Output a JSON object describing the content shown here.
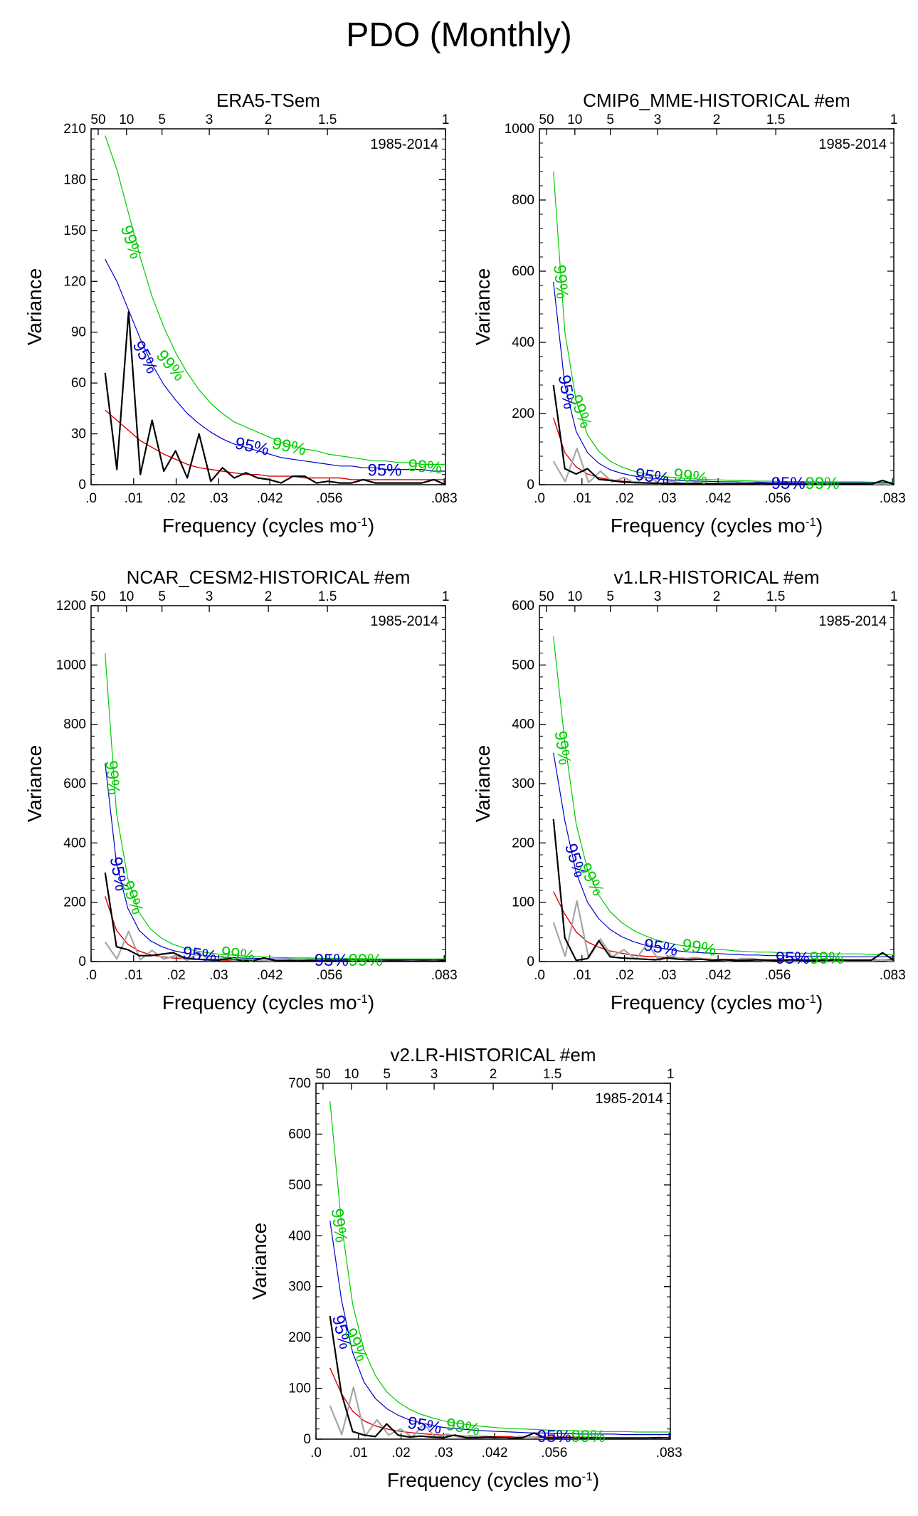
{
  "figure_title": "PDO (Monthly)",
  "colors": {
    "spectrum": "#000000",
    "obs_reference": "#a6a6a6",
    "red_noise": "#e00000",
    "conf_95": "#0000cc",
    "conf_99": "#00cc00"
  },
  "chart_data": [
    {
      "type": "line",
      "title": "ERA5-TSem",
      "period_label": "1985-2014",
      "xlabel": "Frequency (cycles mo",
      "xlabel_sup": "-1",
      "ylabel": "Variance",
      "xlim": [
        0,
        0.0833
      ],
      "ylim": [
        0,
        210
      ],
      "x_ticks": [
        0,
        0.01,
        0.02,
        0.03,
        0.042,
        0.056,
        0.083
      ],
      "x_tick_labels": [
        ".0",
        ".01",
        ".02",
        ".03",
        ".042",
        ".056",
        ".083"
      ],
      "y_ticks": [
        0,
        30,
        60,
        90,
        120,
        150,
        180,
        210
      ],
      "y_tick_labels": [
        "0",
        "30",
        "60",
        "90",
        "120",
        "150",
        "180",
        "210"
      ],
      "top_ticks": [
        50,
        10,
        5,
        3,
        2,
        1.5,
        1
      ],
      "top_tick_labels": [
        "50",
        "10",
        "5",
        "3",
        "2",
        "1.5",
        "1"
      ],
      "show_obs_reference": false,
      "spectrum": [
        66,
        9,
        102,
        6,
        38,
        8,
        20,
        4,
        30,
        2,
        10,
        4,
        7,
        4,
        3,
        1,
        5,
        5,
        1,
        2,
        1,
        1,
        3,
        1,
        1,
        1,
        1,
        1,
        3,
        0
      ],
      "red_noise": [
        44,
        38,
        32,
        26,
        22,
        18,
        15,
        12,
        10,
        9,
        8,
        7,
        6,
        6,
        5,
        5,
        5,
        4,
        4,
        4,
        4,
        3,
        3,
        3,
        3,
        3,
        3,
        3,
        3,
        3
      ],
      "conf95": [
        133,
        120,
        103,
        86,
        71,
        59,
        50,
        42,
        36,
        31,
        27,
        24,
        22,
        20,
        18,
        16,
        15,
        14,
        13,
        12,
        11,
        11,
        10,
        10,
        9,
        9,
        9,
        9,
        8,
        8
      ],
      "conf99": [
        206,
        186,
        160,
        134,
        111,
        93,
        78,
        66,
        56,
        48,
        42,
        37,
        34,
        31,
        28,
        25,
        23,
        21,
        20,
        18,
        17,
        16,
        15,
        14,
        14,
        13,
        13,
        12,
        12,
        12
      ],
      "conf_labels": [
        {
          "text": "99%",
          "level": "99",
          "x": 0.0092,
          "y": 143,
          "angle": 72
        },
        {
          "text": "95%",
          "level": "95",
          "x": 0.0125,
          "y": 75,
          "angle": 62
        },
        {
          "text": "99%",
          "level": "99",
          "x": 0.0185,
          "y": 70,
          "angle": 50
        },
        {
          "text": "95%",
          "level": "95",
          "x": 0.0378,
          "y": 22,
          "angle": 12
        },
        {
          "text": "99%",
          "level": "99",
          "x": 0.0465,
          "y": 22,
          "angle": 12
        },
        {
          "text": "95%",
          "level": "95",
          "x": 0.069,
          "y": 8,
          "angle": 0
        },
        {
          "text": "99%",
          "level": "99",
          "x": 0.0785,
          "y": 10,
          "angle": 5
        }
      ]
    },
    {
      "type": "line",
      "title": "CMIP6_MME-HISTORICAL  #em",
      "period_label": "1985-2014",
      "xlabel": "Frequency (cycles mo",
      "xlabel_sup": "-1",
      "ylabel": "Variance",
      "xlim": [
        0,
        0.0833
      ],
      "ylim": [
        0,
        1000
      ],
      "x_ticks": [
        0,
        0.01,
        0.02,
        0.03,
        0.042,
        0.056,
        0.083
      ],
      "x_tick_labels": [
        ".0",
        ".01",
        ".02",
        ".03",
        ".042",
        ".056",
        ".083"
      ],
      "y_ticks": [
        0,
        200,
        400,
        600,
        800,
        1000
      ],
      "y_tick_labels": [
        "0",
        "200",
        "400",
        "600",
        "800",
        "1000"
      ],
      "top_ticks": [
        50,
        10,
        5,
        3,
        2,
        1.5,
        1
      ],
      "top_tick_labels": [
        "50",
        "10",
        "5",
        "3",
        "2",
        "1.5",
        "1"
      ],
      "show_obs_reference": true,
      "obs_reference": [
        66,
        9,
        102,
        6,
        38,
        8,
        20,
        4,
        30,
        2,
        10,
        4,
        7,
        4,
        3,
        1,
        5,
        5,
        1,
        2,
        1,
        1,
        3,
        1,
        1,
        1,
        1,
        1,
        3,
        0
      ],
      "spectrum": [
        280,
        45,
        30,
        45,
        15,
        12,
        8,
        6,
        5,
        4,
        3,
        3,
        2,
        3,
        2,
        2,
        2,
        2,
        3,
        2,
        2,
        2,
        1,
        2,
        1,
        2,
        2,
        2,
        1,
        12,
        1
      ],
      "red_noise": [
        188,
        90,
        50,
        30,
        20,
        14,
        10,
        8,
        6,
        5,
        4,
        4,
        3,
        3,
        3,
        3,
        3,
        3,
        2,
        2,
        2,
        2,
        2,
        2,
        2,
        2,
        2,
        2,
        2,
        2,
        2
      ],
      "conf95": [
        570,
        280,
        150,
        90,
        60,
        42,
        32,
        25,
        20,
        17,
        14,
        12,
        11,
        10,
        9,
        8,
        8,
        7,
        7,
        6,
        6,
        6,
        6,
        5,
        5,
        5,
        5,
        5,
        5,
        5,
        5
      ],
      "conf99": [
        880,
        430,
        235,
        140,
        94,
        66,
        50,
        39,
        31,
        26,
        22,
        19,
        17,
        15,
        14,
        13,
        12,
        11,
        10,
        10,
        9,
        9,
        9,
        8,
        8,
        8,
        8,
        8,
        7,
        7,
        7
      ],
      "conf_labels": [
        {
          "text": "99%",
          "level": "99",
          "x": 0.0048,
          "y": 570,
          "angle": 85
        },
        {
          "text": "95%",
          "level": "95",
          "x": 0.0062,
          "y": 260,
          "angle": 80
        },
        {
          "text": "99%",
          "level": "99",
          "x": 0.0095,
          "y": 205,
          "angle": 70
        },
        {
          "text": "95%",
          "level": "95",
          "x": 0.0265,
          "y": 20,
          "angle": 8
        },
        {
          "text": "99%",
          "level": "99",
          "x": 0.0355,
          "y": 20,
          "angle": 8
        },
        {
          "text": "95%",
          "level": "95",
          "x": 0.0585,
          "y": 1,
          "angle": 0
        },
        {
          "text": "99%",
          "level": "99",
          "x": 0.0665,
          "y": 1,
          "angle": 0
        }
      ]
    },
    {
      "type": "line",
      "title": "NCAR_CESM2-HISTORICAL  #em",
      "period_label": "1985-2014",
      "xlabel": "Frequency (cycles mo",
      "xlabel_sup": "-1",
      "ylabel": "Variance",
      "xlim": [
        0,
        0.0833
      ],
      "ylim": [
        0,
        1200
      ],
      "x_ticks": [
        0,
        0.01,
        0.02,
        0.03,
        0.042,
        0.056,
        0.083
      ],
      "x_tick_labels": [
        ".0",
        ".01",
        ".02",
        ".03",
        ".042",
        ".056",
        ".083"
      ],
      "y_ticks": [
        0,
        200,
        400,
        600,
        800,
        1000,
        1200
      ],
      "y_tick_labels": [
        "0",
        "200",
        "400",
        "600",
        "800",
        "1000",
        "1200"
      ],
      "top_ticks": [
        50,
        10,
        5,
        3,
        2,
        1.5,
        1
      ],
      "top_tick_labels": [
        "50",
        "10",
        "5",
        "3",
        "2",
        "1.5",
        "1"
      ],
      "show_obs_reference": true,
      "obs_reference": [
        66,
        9,
        102,
        6,
        38,
        8,
        20,
        4,
        30,
        2,
        10,
        4,
        7,
        4,
        3,
        1,
        5,
        5,
        1,
        2,
        1,
        1,
        3,
        1,
        1,
        1,
        1,
        1,
        3,
        0
      ],
      "spectrum": [
        300,
        50,
        40,
        20,
        20,
        25,
        30,
        12,
        8,
        6,
        5,
        10,
        4,
        3,
        12,
        3,
        3,
        2,
        3,
        2,
        2,
        2,
        1,
        2,
        1,
        2,
        2,
        1,
        2,
        1,
        3
      ],
      "red_noise": [
        220,
        105,
        58,
        35,
        23,
        16,
        12,
        9,
        7,
        6,
        5,
        4,
        4,
        3,
        3,
        3,
        3,
        3,
        2,
        2,
        2,
        2,
        2,
        2,
        2,
        2,
        2,
        2,
        2,
        2,
        2
      ],
      "conf95": [
        670,
        330,
        180,
        105,
        70,
        50,
        37,
        29,
        23,
        19,
        16,
        14,
        12,
        11,
        10,
        9,
        9,
        8,
        8,
        7,
        7,
        7,
        6,
        6,
        6,
        6,
        6,
        6,
        6,
        6,
        6
      ],
      "conf99": [
        1040,
        500,
        280,
        165,
        110,
        78,
        58,
        45,
        36,
        30,
        25,
        22,
        19,
        17,
        16,
        14,
        13,
        12,
        12,
        11,
        11,
        10,
        10,
        10,
        9,
        9,
        9,
        9,
        9,
        9,
        9
      ],
      "conf_labels": [
        {
          "text": "99%",
          "level": "99",
          "x": 0.0048,
          "y": 620,
          "angle": 85
        },
        {
          "text": "95%",
          "level": "95",
          "x": 0.0062,
          "y": 295,
          "angle": 80
        },
        {
          "text": "99%",
          "level": "99",
          "x": 0.0095,
          "y": 215,
          "angle": 70
        },
        {
          "text": "95%",
          "level": "95",
          "x": 0.0255,
          "y": 20,
          "angle": 8
        },
        {
          "text": "99%",
          "level": "99",
          "x": 0.0345,
          "y": 20,
          "angle": 8
        },
        {
          "text": "95%",
          "level": "95",
          "x": 0.0565,
          "y": 1,
          "angle": 0
        },
        {
          "text": "99%",
          "level": "99",
          "x": 0.0645,
          "y": 1,
          "angle": 0
        }
      ]
    },
    {
      "type": "line",
      "title": "v1.LR-HISTORICAL  #em",
      "period_label": "1985-2014",
      "xlabel": "Frequency (cycles mo",
      "xlabel_sup": "-1",
      "ylabel": "Variance",
      "xlim": [
        0,
        0.0833
      ],
      "ylim": [
        0,
        600
      ],
      "x_ticks": [
        0,
        0.01,
        0.02,
        0.03,
        0.042,
        0.056,
        0.083
      ],
      "x_tick_labels": [
        ".0",
        ".01",
        ".02",
        ".03",
        ".042",
        ".056",
        ".083"
      ],
      "y_ticks": [
        0,
        100,
        200,
        300,
        400,
        500,
        600
      ],
      "y_tick_labels": [
        "0",
        "100",
        "200",
        "300",
        "400",
        "500",
        "600"
      ],
      "top_ticks": [
        50,
        10,
        5,
        3,
        2,
        1.5,
        1
      ],
      "top_tick_labels": [
        "50",
        "10",
        "5",
        "3",
        "2",
        "1.5",
        "1"
      ],
      "show_obs_reference": true,
      "obs_reference": [
        66,
        9,
        102,
        6,
        38,
        8,
        20,
        4,
        30,
        2,
        10,
        4,
        7,
        4,
        3,
        1,
        5,
        5,
        1,
        2,
        1,
        1,
        3,
        1,
        1,
        1,
        1,
        1,
        3,
        0
      ],
      "spectrum": [
        240,
        40,
        2,
        5,
        35,
        8,
        6,
        5,
        4,
        3,
        6,
        4,
        3,
        4,
        2,
        3,
        2,
        2,
        3,
        2,
        2,
        3,
        2,
        2,
        2,
        3,
        2,
        2,
        2,
        15,
        2
      ],
      "red_noise": [
        118,
        80,
        50,
        33,
        24,
        18,
        14,
        11,
        9,
        8,
        7,
        6,
        5,
        5,
        4,
        4,
        4,
        4,
        3,
        3,
        3,
        3,
        3,
        3,
        3,
        3,
        3,
        3,
        3,
        3,
        3
      ],
      "conf95": [
        352,
        238,
        150,
        100,
        72,
        54,
        42,
        34,
        28,
        24,
        21,
        18,
        16,
        15,
        14,
        13,
        12,
        11,
        11,
        10,
        10,
        9,
        9,
        9,
        9,
        8,
        8,
        8,
        8,
        8,
        8
      ],
      "conf99": [
        548,
        370,
        232,
        155,
        112,
        84,
        66,
        53,
        44,
        37,
        32,
        28,
        25,
        23,
        21,
        20,
        18,
        17,
        16,
        16,
        15,
        14,
        14,
        14,
        13,
        13,
        13,
        13,
        12,
        12,
        12
      ],
      "conf_labels": [
        {
          "text": "99%",
          "level": "99",
          "x": 0.0052,
          "y": 360,
          "angle": 82
        },
        {
          "text": "95%",
          "level": "95",
          "x": 0.0082,
          "y": 170,
          "angle": 72
        },
        {
          "text": "99%",
          "level": "99",
          "x": 0.012,
          "y": 138,
          "angle": 62
        },
        {
          "text": "95%",
          "level": "95",
          "x": 0.0285,
          "y": 22,
          "angle": 10
        },
        {
          "text": "99%",
          "level": "99",
          "x": 0.0375,
          "y": 22,
          "angle": 10
        },
        {
          "text": "95%",
          "level": "95",
          "x": 0.0595,
          "y": 4,
          "angle": 0
        },
        {
          "text": "99%",
          "level": "99",
          "x": 0.0675,
          "y": 4,
          "angle": 0
        }
      ]
    },
    {
      "type": "line",
      "title": "v2.LR-HISTORICAL  #em",
      "period_label": "1985-2014",
      "xlabel": "Frequency (cycles mo",
      "xlabel_sup": "-1",
      "ylabel": "Variance",
      "xlim": [
        0,
        0.0833
      ],
      "ylim": [
        0,
        700
      ],
      "x_ticks": [
        0,
        0.01,
        0.02,
        0.03,
        0.042,
        0.056,
        0.083
      ],
      "x_tick_labels": [
        ".0",
        ".01",
        ".02",
        ".03",
        ".042",
        ".056",
        ".083"
      ],
      "y_ticks": [
        0,
        100,
        200,
        300,
        400,
        500,
        600,
        700
      ],
      "y_tick_labels": [
        "0",
        "100",
        "200",
        "300",
        "400",
        "500",
        "600",
        "700"
      ],
      "top_ticks": [
        50,
        10,
        5,
        3,
        2,
        1.5,
        1
      ],
      "top_tick_labels": [
        "50",
        "10",
        "5",
        "3",
        "2",
        "1.5",
        "1"
      ],
      "show_obs_reference": true,
      "obs_reference": [
        66,
        9,
        102,
        6,
        38,
        8,
        20,
        4,
        30,
        2,
        10,
        4,
        7,
        4,
        3,
        1,
        5,
        5,
        1,
        2,
        1,
        1,
        3,
        1,
        1,
        1,
        1,
        1,
        3,
        0
      ],
      "spectrum": [
        242,
        90,
        15,
        8,
        5,
        30,
        8,
        4,
        6,
        4,
        3,
        8,
        3,
        3,
        4,
        3,
        2,
        3,
        12,
        2,
        2,
        3,
        2,
        3,
        2,
        2,
        2,
        2,
        2,
        3,
        2
      ],
      "red_noise": [
        140,
        90,
        55,
        36,
        26,
        20,
        16,
        13,
        11,
        9,
        8,
        7,
        6,
        6,
        5,
        5,
        5,
        4,
        4,
        4,
        4,
        4,
        4,
        3,
        3,
        3,
        3,
        3,
        3,
        3,
        3
      ],
      "conf95": [
        430,
        275,
        170,
        112,
        80,
        60,
        47,
        38,
        32,
        27,
        23,
        21,
        19,
        17,
        16,
        15,
        14,
        13,
        12,
        12,
        11,
        11,
        10,
        10,
        10,
        10,
        9,
        9,
        9,
        9,
        9
      ],
      "conf99": [
        665,
        425,
        265,
        175,
        125,
        93,
        73,
        59,
        49,
        42,
        36,
        32,
        29,
        26,
        24,
        22,
        21,
        20,
        19,
        18,
        17,
        17,
        16,
        16,
        15,
        15,
        15,
        14,
        14,
        14,
        14
      ],
      "conf_labels": [
        {
          "text": "99%",
          "level": "99",
          "x": 0.0052,
          "y": 420,
          "angle": 82
        },
        {
          "text": "95%",
          "level": "95",
          "x": 0.0058,
          "y": 210,
          "angle": 76
        },
        {
          "text": "99%",
          "level": "99",
          "x": 0.0092,
          "y": 185,
          "angle": 66
        },
        {
          "text": "95%",
          "level": "95",
          "x": 0.0255,
          "y": 25,
          "angle": 10
        },
        {
          "text": "99%",
          "level": "99",
          "x": 0.0345,
          "y": 22,
          "angle": 10
        },
        {
          "text": "95%",
          "level": "95",
          "x": 0.056,
          "y": 3,
          "angle": 0
        },
        {
          "text": "99%",
          "level": "99",
          "x": 0.064,
          "y": 3,
          "angle": 0
        }
      ]
    }
  ]
}
